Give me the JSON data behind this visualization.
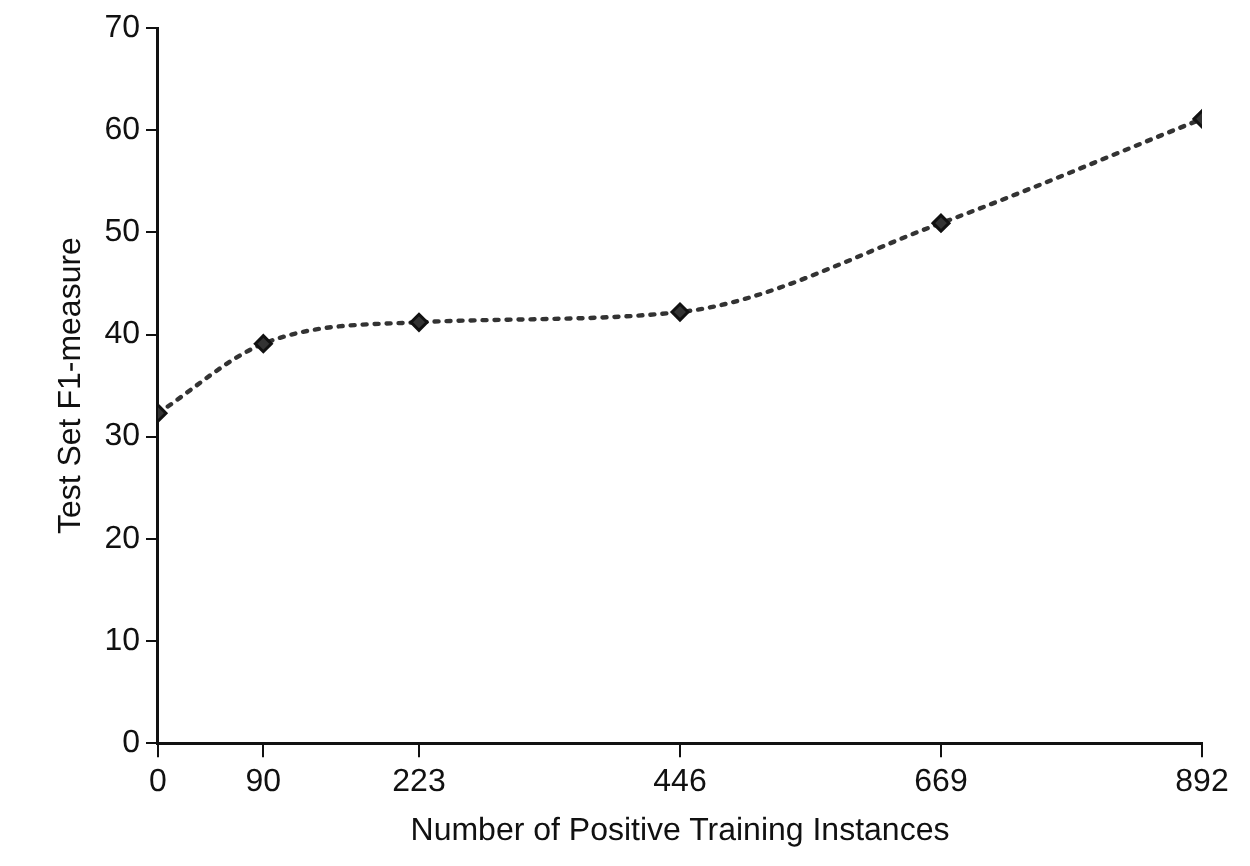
{
  "chart_data": {
    "type": "line",
    "xlabel": "Number of Positive Training Instances",
    "ylabel": "Test Set F1-measure",
    "x": [
      0,
      90,
      223,
      446,
      669,
      892
    ],
    "series": [
      {
        "color": "#333333",
        "values": [
          32.3,
          39.1,
          41.2,
          42.2,
          50.9,
          61.1
        ]
      }
    ],
    "xlim": [
      0,
      892
    ],
    "xticks": [
      0,
      90,
      223,
      446,
      669,
      892
    ],
    "ylim": [
      0,
      70
    ],
    "yticks": [
      0,
      10,
      20,
      30,
      40,
      50,
      60,
      70
    ],
    "grid": false,
    "legend": false,
    "marker": "diamond",
    "line_style": "dotted"
  }
}
